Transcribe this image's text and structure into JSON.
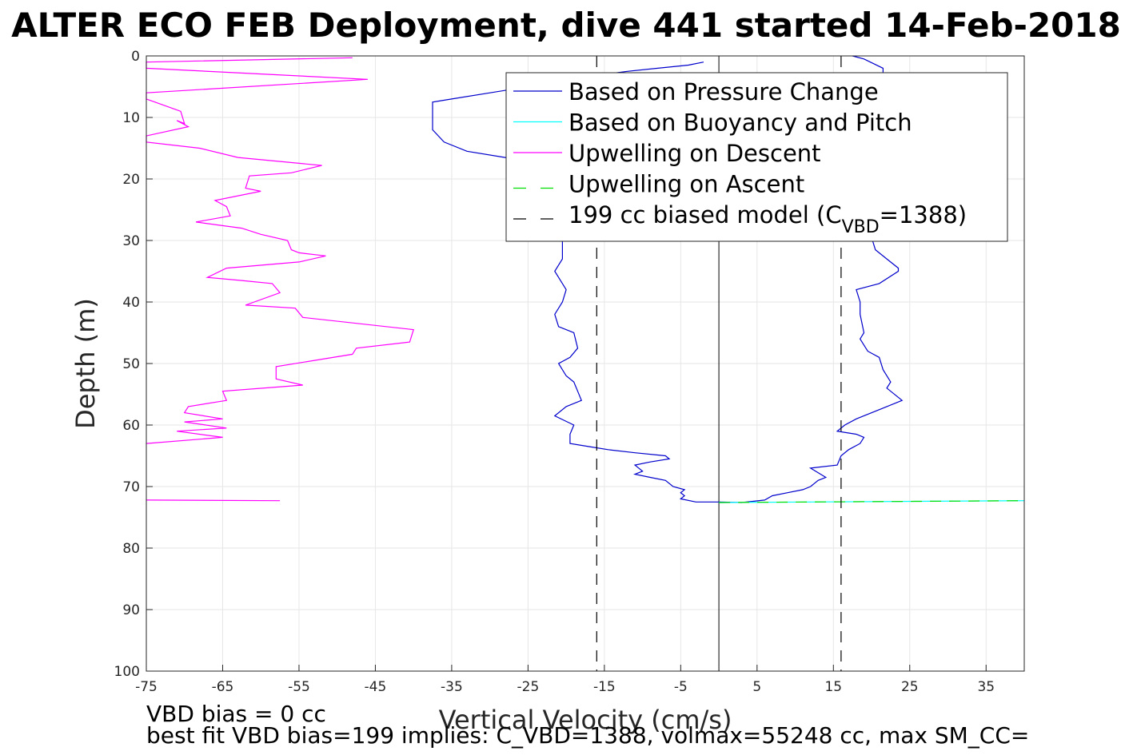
{
  "chart_data": {
    "type": "line",
    "title": "ALTER ECO FEB Deployment, dive 441 started 14-Feb-2018",
    "xlabel": "Vertical Velocity (cm/s)",
    "ylabel": "Depth (m)",
    "xlim": [
      -75,
      40
    ],
    "ylim": [
      0,
      100
    ],
    "y_reversed": true,
    "grid": true,
    "legend_position": "top-right",
    "xticks": [
      -75,
      -65,
      -55,
      -45,
      -35,
      -25,
      -15,
      -5,
      5,
      15,
      25,
      35
    ],
    "yticks": [
      0,
      10,
      20,
      30,
      40,
      50,
      60,
      70,
      80,
      90,
      100
    ],
    "series": [
      {
        "name": "Based on Pressure Change",
        "color": "#0000cc",
        "style": "solid",
        "points": [
          [
            -2,
            1
          ],
          [
            -4,
            1.5
          ],
          [
            -8,
            2
          ],
          [
            -12,
            2.5
          ],
          [
            -15,
            3
          ],
          [
            -20,
            4
          ],
          [
            -25,
            5
          ],
          [
            -30,
            6
          ],
          [
            -35,
            7
          ],
          [
            -37.5,
            7.5
          ],
          [
            -37.5,
            12
          ],
          [
            -36,
            14
          ],
          [
            -33,
            15.5
          ],
          [
            -28,
            16.5
          ],
          [
            -25,
            17.5
          ],
          [
            -22,
            20
          ],
          [
            -21,
            25
          ],
          [
            -20.5,
            30
          ],
          [
            -20.5,
            33
          ],
          [
            -21.5,
            35
          ],
          [
            -20.5,
            37
          ],
          [
            -20,
            38
          ],
          [
            -20.5,
            40
          ],
          [
            -21.5,
            42
          ],
          [
            -21,
            44
          ],
          [
            -19,
            45
          ],
          [
            -18.5,
            47.5
          ],
          [
            -19.5,
            49
          ],
          [
            -21,
            50
          ],
          [
            -20,
            52
          ],
          [
            -19,
            53
          ],
          [
            -18.5,
            54.5
          ],
          [
            -18,
            56
          ],
          [
            -20,
            57
          ],
          [
            -21.5,
            58.5
          ],
          [
            -19,
            60
          ],
          [
            -19.5,
            61.5
          ],
          [
            -19.5,
            63
          ],
          [
            -17,
            63.5
          ],
          [
            -14.5,
            64
          ],
          [
            -11,
            64.5
          ],
          [
            -7,
            65
          ],
          [
            -6.5,
            65.5
          ],
          [
            -9,
            66
          ],
          [
            -11,
            66.5
          ],
          [
            -10,
            67.5
          ],
          [
            -11,
            68
          ],
          [
            -9,
            68.5
          ],
          [
            -7,
            69
          ],
          [
            -6,
            70
          ],
          [
            -4.5,
            70.5
          ],
          [
            -5,
            71
          ],
          [
            -4.5,
            71.5
          ],
          [
            -5,
            72
          ],
          [
            -3,
            72.5
          ],
          [
            0,
            72.5
          ],
          [
            3,
            72.6
          ],
          [
            6,
            72.2
          ],
          [
            7,
            71.5
          ],
          [
            9,
            71
          ],
          [
            11,
            70.5
          ],
          [
            12,
            70
          ],
          [
            13,
            69
          ],
          [
            14,
            68.5
          ],
          [
            12,
            67
          ],
          [
            15.5,
            66.5
          ],
          [
            16,
            65
          ],
          [
            17,
            64
          ],
          [
            18.5,
            63
          ],
          [
            19,
            62
          ],
          [
            18,
            61.5
          ],
          [
            15.5,
            61
          ],
          [
            16.5,
            60
          ],
          [
            18,
            59
          ],
          [
            22,
            57
          ],
          [
            24,
            56
          ],
          [
            22,
            54
          ],
          [
            22.5,
            53
          ],
          [
            21.5,
            51
          ],
          [
            21,
            49
          ],
          [
            19.5,
            48
          ],
          [
            19,
            47
          ],
          [
            18.5,
            46
          ],
          [
            19,
            45
          ],
          [
            18.5,
            42
          ],
          [
            18.5,
            40
          ],
          [
            18,
            38
          ],
          [
            21,
            37
          ],
          [
            23.5,
            35
          ],
          [
            23.5,
            34.5
          ],
          [
            22,
            33
          ],
          [
            20.5,
            31.5
          ],
          [
            20,
            29.5
          ],
          [
            19,
            26
          ],
          [
            19,
            21
          ],
          [
            20,
            16
          ],
          [
            20,
            11
          ],
          [
            21.5,
            5
          ],
          [
            21.5,
            2
          ],
          [
            19,
            0.5
          ],
          [
            17.5,
            0
          ]
        ]
      },
      {
        "name": "Based on Buoyancy and Pitch",
        "color": "#00ffff",
        "style": "solid",
        "points": [
          [
            0,
            72.6
          ],
          [
            40,
            72.3
          ]
        ]
      },
      {
        "name": "Upwelling on Descent",
        "color": "#ff00ff",
        "style": "solid",
        "points": [
          [
            -48,
            0.3
          ],
          [
            -75,
            1
          ],
          [
            -75,
            2
          ],
          [
            -46,
            3.8
          ],
          [
            -75,
            6
          ],
          [
            -75,
            7
          ],
          [
            -70.5,
            9
          ],
          [
            -70,
            11
          ],
          [
            -71,
            10.5
          ],
          [
            -69.5,
            11.5
          ],
          [
            -75,
            13
          ],
          [
            -75,
            14
          ],
          [
            -68,
            15
          ],
          [
            -63,
            16.5
          ],
          [
            -52,
            17.8
          ],
          [
            -56,
            19
          ],
          [
            -61.5,
            19.5
          ],
          [
            -62,
            21.5
          ],
          [
            -60,
            22
          ],
          [
            -66,
            23.5
          ],
          [
            -64.5,
            24.5
          ],
          [
            -64,
            26
          ],
          [
            -68.5,
            27
          ],
          [
            -62.5,
            28
          ],
          [
            -60,
            29
          ],
          [
            -56.5,
            30
          ],
          [
            -56,
            31.5
          ],
          [
            -55,
            32
          ],
          [
            -51.5,
            32.5
          ],
          [
            -55,
            33.5
          ],
          [
            -64.5,
            34.5
          ],
          [
            -67,
            36
          ],
          [
            -62.5,
            36.5
          ],
          [
            -58.5,
            37
          ],
          [
            -57.5,
            38.5
          ],
          [
            -62,
            40.5
          ],
          [
            -55.5,
            41
          ],
          [
            -54.5,
            42.5
          ],
          [
            -40,
            44.5
          ],
          [
            -40.5,
            46.5
          ],
          [
            -47.5,
            47.5
          ],
          [
            -48,
            48.5
          ],
          [
            -58,
            50.5
          ],
          [
            -58,
            52.5
          ],
          [
            -54.5,
            53.5
          ],
          [
            -65,
            54.5
          ],
          [
            -64.5,
            56
          ],
          [
            -69.5,
            57
          ],
          [
            -70,
            58
          ],
          [
            -65,
            59
          ],
          [
            -70,
            59.5
          ],
          [
            -64.5,
            60.5
          ],
          [
            -71,
            61
          ],
          [
            -65,
            62
          ],
          [
            -75,
            63
          ]
        ],
        "extra_points": [
          [
            -75,
            72.2
          ],
          [
            -57.5,
            72.3
          ]
        ]
      },
      {
        "name": "Upwelling on Ascent",
        "color": "#00dd00",
        "style": "dashed",
        "points": [
          [
            0,
            72.6
          ],
          [
            40,
            72.3
          ]
        ]
      },
      {
        "name": "199 cc biased model (C",
        "name_sub": "VBD",
        "name_rest": "=1388)",
        "color": "#000000",
        "style": "dashed",
        "points": [
          [
            -16,
            0
          ],
          [
            -16,
            100
          ]
        ],
        "mirror_points": [
          [
            16,
            0
          ],
          [
            16,
            100
          ]
        ]
      }
    ],
    "reference_line": {
      "x": 0,
      "color": "#000000"
    }
  },
  "footer": {
    "line1": "VBD bias = 0 cc",
    "line2": "best fit VBD bias=199 implies: C_VBD=1388, volmax=55248 cc, max SM_CC="
  }
}
